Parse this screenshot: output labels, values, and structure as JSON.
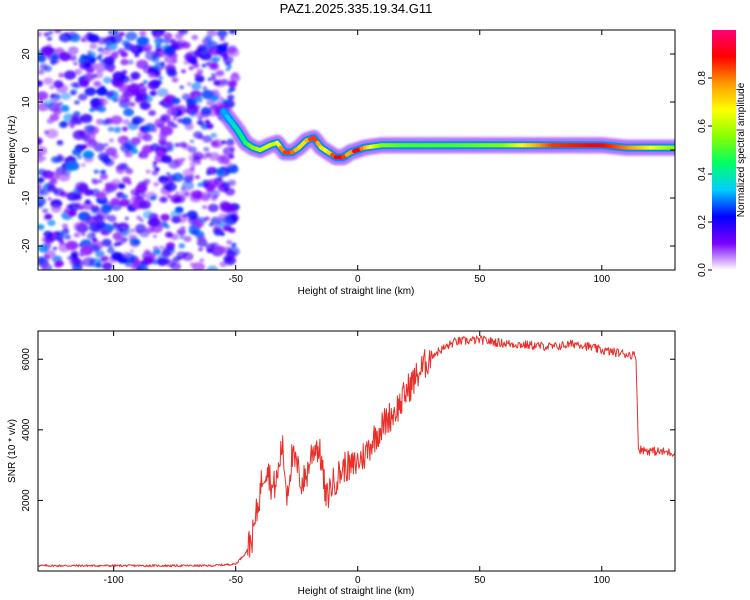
{
  "title": "PAZ1.2025.335.19.34.G11",
  "chart_data": [
    {
      "type": "heatmap",
      "name": "spectrogram",
      "xlabel": "Height of straight line (km)",
      "ylabel": "Frequency (Hz)",
      "xlim": [
        -131,
        130
      ],
      "ylim": [
        -25,
        25
      ],
      "xticks": [
        -100,
        -50,
        0,
        50,
        100
      ],
      "yticks": [
        -20,
        -10,
        0,
        10,
        20
      ],
      "colorbar": {
        "label": "Normalized spectral amplitude",
        "range": [
          0,
          1
        ],
        "ticks": [
          0.0,
          0.2,
          0.4,
          0.6,
          0.8
        ],
        "tick_labels": [
          "0.0",
          "0.2",
          "0.4",
          "0.6",
          "0.8"
        ],
        "colors": [
          "#ffffff",
          "#7b00ff",
          "#0000ff",
          "#00ccff",
          "#00ff66",
          "#88ff00",
          "#ffff00",
          "#ff9900",
          "#ff0000",
          "#ff0077"
        ]
      },
      "noise_region_x": [
        -131,
        -50
      ],
      "ridge": {
        "x": [
          -55,
          -52,
          -49,
          -46,
          -43,
          -40,
          -36,
          -33,
          -30,
          -27,
          -24,
          -21,
          -18,
          -15,
          -12,
          -9,
          -6,
          -3,
          0,
          3,
          10,
          20,
          40,
          60,
          80,
          100,
          110,
          130
        ],
        "freq_hz": [
          8,
          6,
          4,
          1.5,
          0.5,
          0,
          1,
          1.5,
          -0.5,
          -0.5,
          0.5,
          2,
          2.5,
          0.5,
          -0.5,
          -1.5,
          -1.5,
          -0.5,
          0,
          0.5,
          1,
          1,
          1,
          1,
          1,
          1,
          0.5,
          0.5
        ],
        "amplitude": [
          0.3,
          0.35,
          0.4,
          0.45,
          0.55,
          0.6,
          0.65,
          0.6,
          0.85,
          0.85,
          0.7,
          0.7,
          0.9,
          0.7,
          0.65,
          0.9,
          0.9,
          0.7,
          0.95,
          0.75,
          0.55,
          0.5,
          0.5,
          0.55,
          0.85,
          0.9,
          0.8,
          0.55
        ]
      }
    },
    {
      "type": "line",
      "name": "snr",
      "xlabel": "Height of straight line (km)",
      "ylabel": "SNR (10 * v/v)",
      "xlim": [
        -131,
        130
      ],
      "ylim": [
        0,
        6800
      ],
      "xticks": [
        -100,
        -50,
        0,
        50,
        100
      ],
      "yticks": [
        2000,
        4000,
        6000
      ],
      "color": "#e8302a",
      "series": [
        {
          "name": "SNR",
          "x": [
            -131,
            -100,
            -60,
            -50,
            -46,
            -43,
            -41,
            -39,
            -37,
            -35,
            -33,
            -31,
            -29,
            -27,
            -25,
            -23,
            -21,
            -19,
            -17,
            -15,
            -13,
            -11,
            -9,
            -7,
            -5,
            -3,
            0,
            3,
            6,
            9,
            12,
            15,
            18,
            20,
            25,
            30,
            35,
            40,
            50,
            60,
            70,
            80,
            90,
            100,
            110,
            114,
            115,
            120,
            130
          ],
          "y": [
            150,
            150,
            150,
            200,
            500,
            1000,
            1800,
            2700,
            3000,
            2300,
            2600,
            3600,
            2200,
            3200,
            3000,
            2500,
            2700,
            3300,
            3600,
            3200,
            2000,
            2400,
            2600,
            2800,
            3000,
            2900,
            3100,
            3300,
            3700,
            4000,
            4300,
            4500,
            4800,
            5100,
            5600,
            6100,
            6300,
            6500,
            6550,
            6450,
            6400,
            6350,
            6450,
            6250,
            6150,
            6100,
            3450,
            3400,
            3350
          ]
        }
      ]
    }
  ]
}
